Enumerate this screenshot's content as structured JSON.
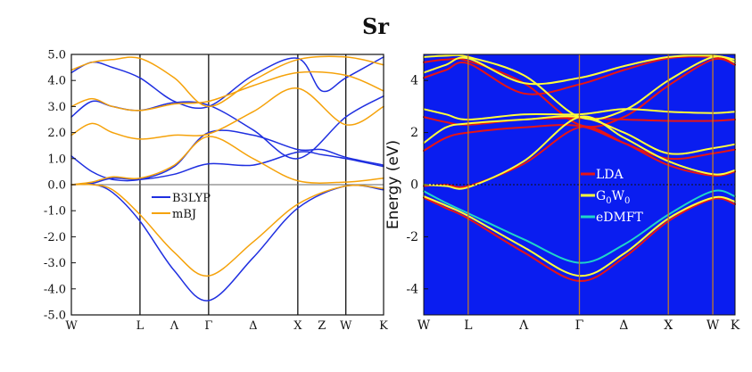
{
  "figure": {
    "title": "Sr"
  },
  "chart_data": [
    {
      "type": "line",
      "name": "band structure (B3LYP vs mBJ)",
      "xlabel": "",
      "ylabel": "",
      "ylim": [
        -5.0,
        5.0
      ],
      "yticks": [
        "5.0",
        "4.0",
        "3.0",
        "2.0",
        "1.0",
        "0.0",
        "-1.0",
        "-2.0",
        "-3.0",
        "-4.0",
        "-5.0"
      ],
      "ytick_values": [
        5,
        4,
        3,
        2,
        1,
        0,
        -1,
        -2,
        -3,
        -4,
        -5
      ],
      "kpoints": [
        "W",
        "L",
        "Λ",
        "Γ",
        "Δ",
        "X",
        "Z",
        "W",
        "K"
      ],
      "kpoint_positions": [
        0,
        1,
        1.5,
        2,
        2.65,
        3.3,
        3.65,
        4,
        4.55
      ],
      "high_symmetry_lines": [
        1,
        2,
        3.3,
        4
      ],
      "xlim": [
        0,
        4.55
      ],
      "legend": {
        "placement": "center",
        "entries": [
          "B3LYP",
          "mBJ"
        ]
      },
      "series": [
        {
          "name": "B3LYP",
          "color": "#1f2fe0",
          "bands": [
            {
              "x": [
                0,
                0.3,
                0.6,
                1,
                1.5,
                2,
                2.65,
                3.3,
                4,
                4.55
              ],
              "y": [
                0,
                0.02,
                -0.3,
                -1.4,
                -3.3,
                -4.45,
                -2.8,
                -0.9,
                -0.05,
                -0.2
              ]
            },
            {
              "x": [
                0,
                0.3,
                0.6,
                1,
                1.5,
                2,
                2.65,
                3.3,
                3.65,
                4,
                4.55
              ],
              "y": [
                0,
                0.05,
                0.25,
                0.2,
                0.4,
                0.8,
                0.75,
                1.25,
                1.15,
                1.0,
                0.7
              ]
            },
            {
              "x": [
                0,
                0.3,
                0.6,
                1,
                1.5,
                2,
                2.65,
                3.3,
                3.65,
                4,
                4.55
              ],
              "y": [
                1.1,
                0.5,
                0.2,
                0.2,
                0.7,
                2.0,
                1.9,
                1.35,
                1.35,
                1.05,
                0.75
              ]
            },
            {
              "x": [
                0,
                0.3,
                0.6,
                1,
                1.5,
                2,
                2.65,
                3.3,
                4,
                4.55
              ],
              "y": [
                2.6,
                3.2,
                3.0,
                2.85,
                3.15,
                3.05,
                2.1,
                1.0,
                2.6,
                3.4
              ]
            },
            {
              "x": [
                0,
                0.3,
                0.6,
                1,
                1.5,
                2,
                2.65,
                3.3,
                3.65,
                4,
                4.55
              ],
              "y": [
                4.3,
                4.7,
                4.5,
                4.1,
                3.2,
                3.0,
                4.2,
                4.85,
                3.6,
                4.1,
                4.9
              ]
            }
          ]
        },
        {
          "name": "mBJ",
          "color": "#f5a20a",
          "bands": [
            {
              "x": [
                0,
                0.3,
                0.6,
                1,
                1.5,
                2,
                2.65,
                3.3,
                4,
                4.55
              ],
              "y": [
                0,
                0.0,
                -0.2,
                -1.15,
                -2.6,
                -3.5,
                -2.2,
                -0.75,
                -0.05,
                -0.15
              ]
            },
            {
              "x": [
                0,
                0.3,
                0.6,
                1,
                1.5,
                2,
                2.65,
                3.3,
                4,
                4.55
              ],
              "y": [
                0,
                0.1,
                0.3,
                0.25,
                0.75,
                1.85,
                1.0,
                0.15,
                0.1,
                0.25
              ]
            },
            {
              "x": [
                0,
                0.3,
                0.6,
                1,
                1.5,
                2,
                2.65,
                3.3,
                4,
                4.55
              ],
              "y": [
                1.9,
                2.35,
                2.0,
                1.75,
                1.9,
                1.95,
                2.8,
                3.7,
                2.3,
                3.0
              ]
            },
            {
              "x": [
                0,
                0.3,
                0.6,
                1,
                1.5,
                2,
                2.65,
                3.3,
                4,
                4.55
              ],
              "y": [
                3.0,
                3.3,
                3.0,
                2.85,
                3.1,
                3.2,
                3.8,
                4.3,
                4.2,
                3.6
              ]
            },
            {
              "x": [
                0,
                0.3,
                0.6,
                1,
                1.5,
                2,
                2.65,
                3.3,
                4,
                4.55
              ],
              "y": [
                4.4,
                4.7,
                4.8,
                4.85,
                4.1,
                3.0,
                4.0,
                4.8,
                4.9,
                4.6
              ]
            }
          ]
        }
      ]
    },
    {
      "type": "line",
      "name": "band structure (LDA vs G0W0 vs eDMFT)",
      "ylabel": "Energy (eV)",
      "ylim": [
        -5.0,
        5.0
      ],
      "yticks": [
        "4",
        "2",
        "0",
        "-2",
        "-4"
      ],
      "ytick_values": [
        4,
        2,
        0,
        -2,
        -4
      ],
      "kpoints": [
        "W",
        "L",
        "Λ",
        "Γ",
        "Δ",
        "X",
        "W",
        "K"
      ],
      "kpoint_positions": [
        0,
        1,
        2.25,
        3.5,
        4.5,
        5.5,
        6.5,
        7.0
      ],
      "high_symmetry_lines": [
        1,
        3.5,
        5.5,
        6.5
      ],
      "xlim": [
        0,
        7.0
      ],
      "fermi_level": 0,
      "background": "#0a1df0",
      "legend": {
        "placement": "center",
        "entries": [
          "LDA",
          "G0W0",
          "eDMFT"
        ]
      },
      "series": [
        {
          "name": "LDA",
          "color": "#e81414",
          "bands": [
            {
              "x": [
                0,
                0.5,
                1,
                2.25,
                3.5,
                4.5,
                5.5,
                6.5,
                7.0
              ],
              "y": [
                -0.5,
                -0.9,
                -1.3,
                -2.6,
                -3.7,
                -2.8,
                -1.4,
                -0.55,
                -0.75
              ]
            },
            {
              "x": [
                0,
                0.5,
                1,
                2.25,
                3.5,
                4.5,
                5.5,
                6.5,
                7.0
              ],
              "y": [
                -0.05,
                0.0,
                -0.05,
                0.8,
                2.2,
                1.6,
                0.75,
                0.35,
                0.5
              ]
            },
            {
              "x": [
                0,
                0.5,
                1,
                2.25,
                3.5,
                4.5,
                5.5,
                6.5,
                7.0
              ],
              "y": [
                1.3,
                1.8,
                2.0,
                2.2,
                2.25,
                1.6,
                1.0,
                1.2,
                1.35
              ]
            },
            {
              "x": [
                0,
                0.5,
                1,
                2.25,
                3.5,
                4.5,
                5.5,
                6.5,
                7.0
              ],
              "y": [
                2.6,
                2.4,
                2.3,
                2.5,
                2.55,
                2.5,
                2.45,
                2.45,
                2.5
              ]
            },
            {
              "x": [
                0,
                0.5,
                1,
                2.25,
                3.5,
                4.5,
                5.5,
                6.5,
                7.0
              ],
              "y": [
                4.1,
                4.4,
                4.65,
                3.5,
                3.85,
                4.4,
                4.85,
                4.9,
                4.7
              ]
            },
            {
              "x": [
                0,
                0.5,
                1,
                2.25,
                3.5,
                4.5,
                5.5,
                6.5,
                7.0
              ],
              "y": [
                4.7,
                4.8,
                4.75,
                3.9,
                2.3,
                2.6,
                3.8,
                4.8,
                4.6
              ]
            }
          ]
        },
        {
          "name": "G0W0",
          "color": "#ffff3a",
          "bands": [
            {
              "x": [
                0,
                0.5,
                1,
                2.25,
                3.5,
                4.5,
                5.5,
                6.5,
                7.0
              ],
              "y": [
                -0.45,
                -0.8,
                -1.2,
                -2.4,
                -3.5,
                -2.65,
                -1.3,
                -0.5,
                -0.65
              ]
            },
            {
              "x": [
                0,
                0.5,
                1,
                2.25,
                3.5,
                4.5,
                5.5,
                6.5,
                7.0
              ],
              "y": [
                0.0,
                -0.05,
                -0.1,
                0.9,
                2.6,
                1.8,
                0.9,
                0.4,
                0.55
              ]
            },
            {
              "x": [
                0,
                0.5,
                1,
                2.25,
                3.5,
                4.5,
                5.5,
                6.5,
                7.0
              ],
              "y": [
                1.6,
                2.2,
                2.35,
                2.5,
                2.6,
                2.0,
                1.2,
                1.4,
                1.55
              ]
            },
            {
              "x": [
                0,
                0.5,
                1,
                2.25,
                3.5,
                4.5,
                5.5,
                6.5,
                7.0
              ],
              "y": [
                2.9,
                2.7,
                2.5,
                2.7,
                2.7,
                2.9,
                2.8,
                2.75,
                2.8
              ]
            },
            {
              "x": [
                0,
                0.5,
                1,
                2.25,
                3.5,
                4.5,
                5.5,
                6.5,
                7.0
              ],
              "y": [
                4.3,
                4.6,
                4.85,
                3.9,
                4.1,
                4.55,
                4.9,
                4.95,
                4.8
              ]
            },
            {
              "x": [
                0,
                0.5,
                1,
                2.25,
                3.5,
                4.5,
                5.5,
                6.5,
                7.0
              ],
              "y": [
                4.9,
                4.95,
                4.9,
                4.2,
                2.6,
                2.85,
                4.0,
                4.9,
                4.7
              ]
            }
          ]
        },
        {
          "name": "eDMFT",
          "color": "#1fd6c8",
          "bands": [
            {
              "x": [
                0,
                0.5,
                1,
                2.25,
                3.5,
                4.5,
                5.5,
                6.5,
                7.0
              ],
              "y": [
                -0.25,
                -0.7,
                -1.1,
                -2.1,
                -3.0,
                -2.3,
                -1.15,
                -0.25,
                -0.45
              ]
            }
          ]
        }
      ]
    }
  ]
}
